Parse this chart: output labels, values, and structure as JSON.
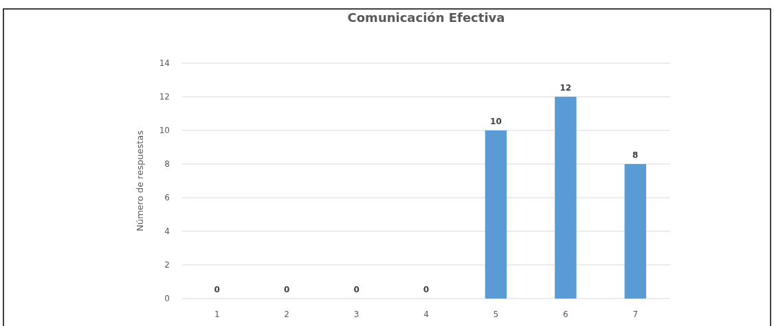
{
  "chart_data": {
    "type": "bar",
    "title": "Comunicación Efectiva",
    "ylabel": "Número de respuestas",
    "categories": [
      "1",
      "2",
      "3",
      "4",
      "5",
      "6",
      "7"
    ],
    "values": [
      0,
      0,
      0,
      0,
      10,
      12,
      8
    ],
    "color": "#5b9bd5",
    "ylim": [
      0,
      14
    ],
    "yticks": [
      0,
      2,
      4,
      6,
      8,
      10,
      12,
      14
    ],
    "grid": "y",
    "data_labels": true
  }
}
